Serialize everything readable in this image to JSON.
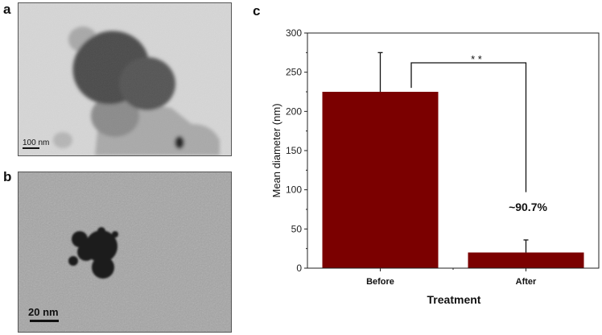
{
  "panels": {
    "a": {
      "label": "a",
      "scale_bar": "100 nm"
    },
    "b": {
      "label": "b",
      "scale_bar": "20 nm"
    },
    "c": {
      "label": "c"
    }
  },
  "chart_data": {
    "type": "bar",
    "title": "",
    "categories": [
      "Before",
      "After"
    ],
    "values": [
      225,
      20
    ],
    "error_upper": [
      275,
      36
    ],
    "xlabel": "Treatment",
    "ylabel": "Mean diameter (nm)",
    "ylim": [
      0,
      300
    ],
    "yticks": [
      0,
      50,
      100,
      150,
      200,
      250,
      300
    ],
    "bar_color": "#7b0000",
    "grid": false,
    "annotations": {
      "significance": "* *",
      "reduction": "~90.7%"
    }
  }
}
